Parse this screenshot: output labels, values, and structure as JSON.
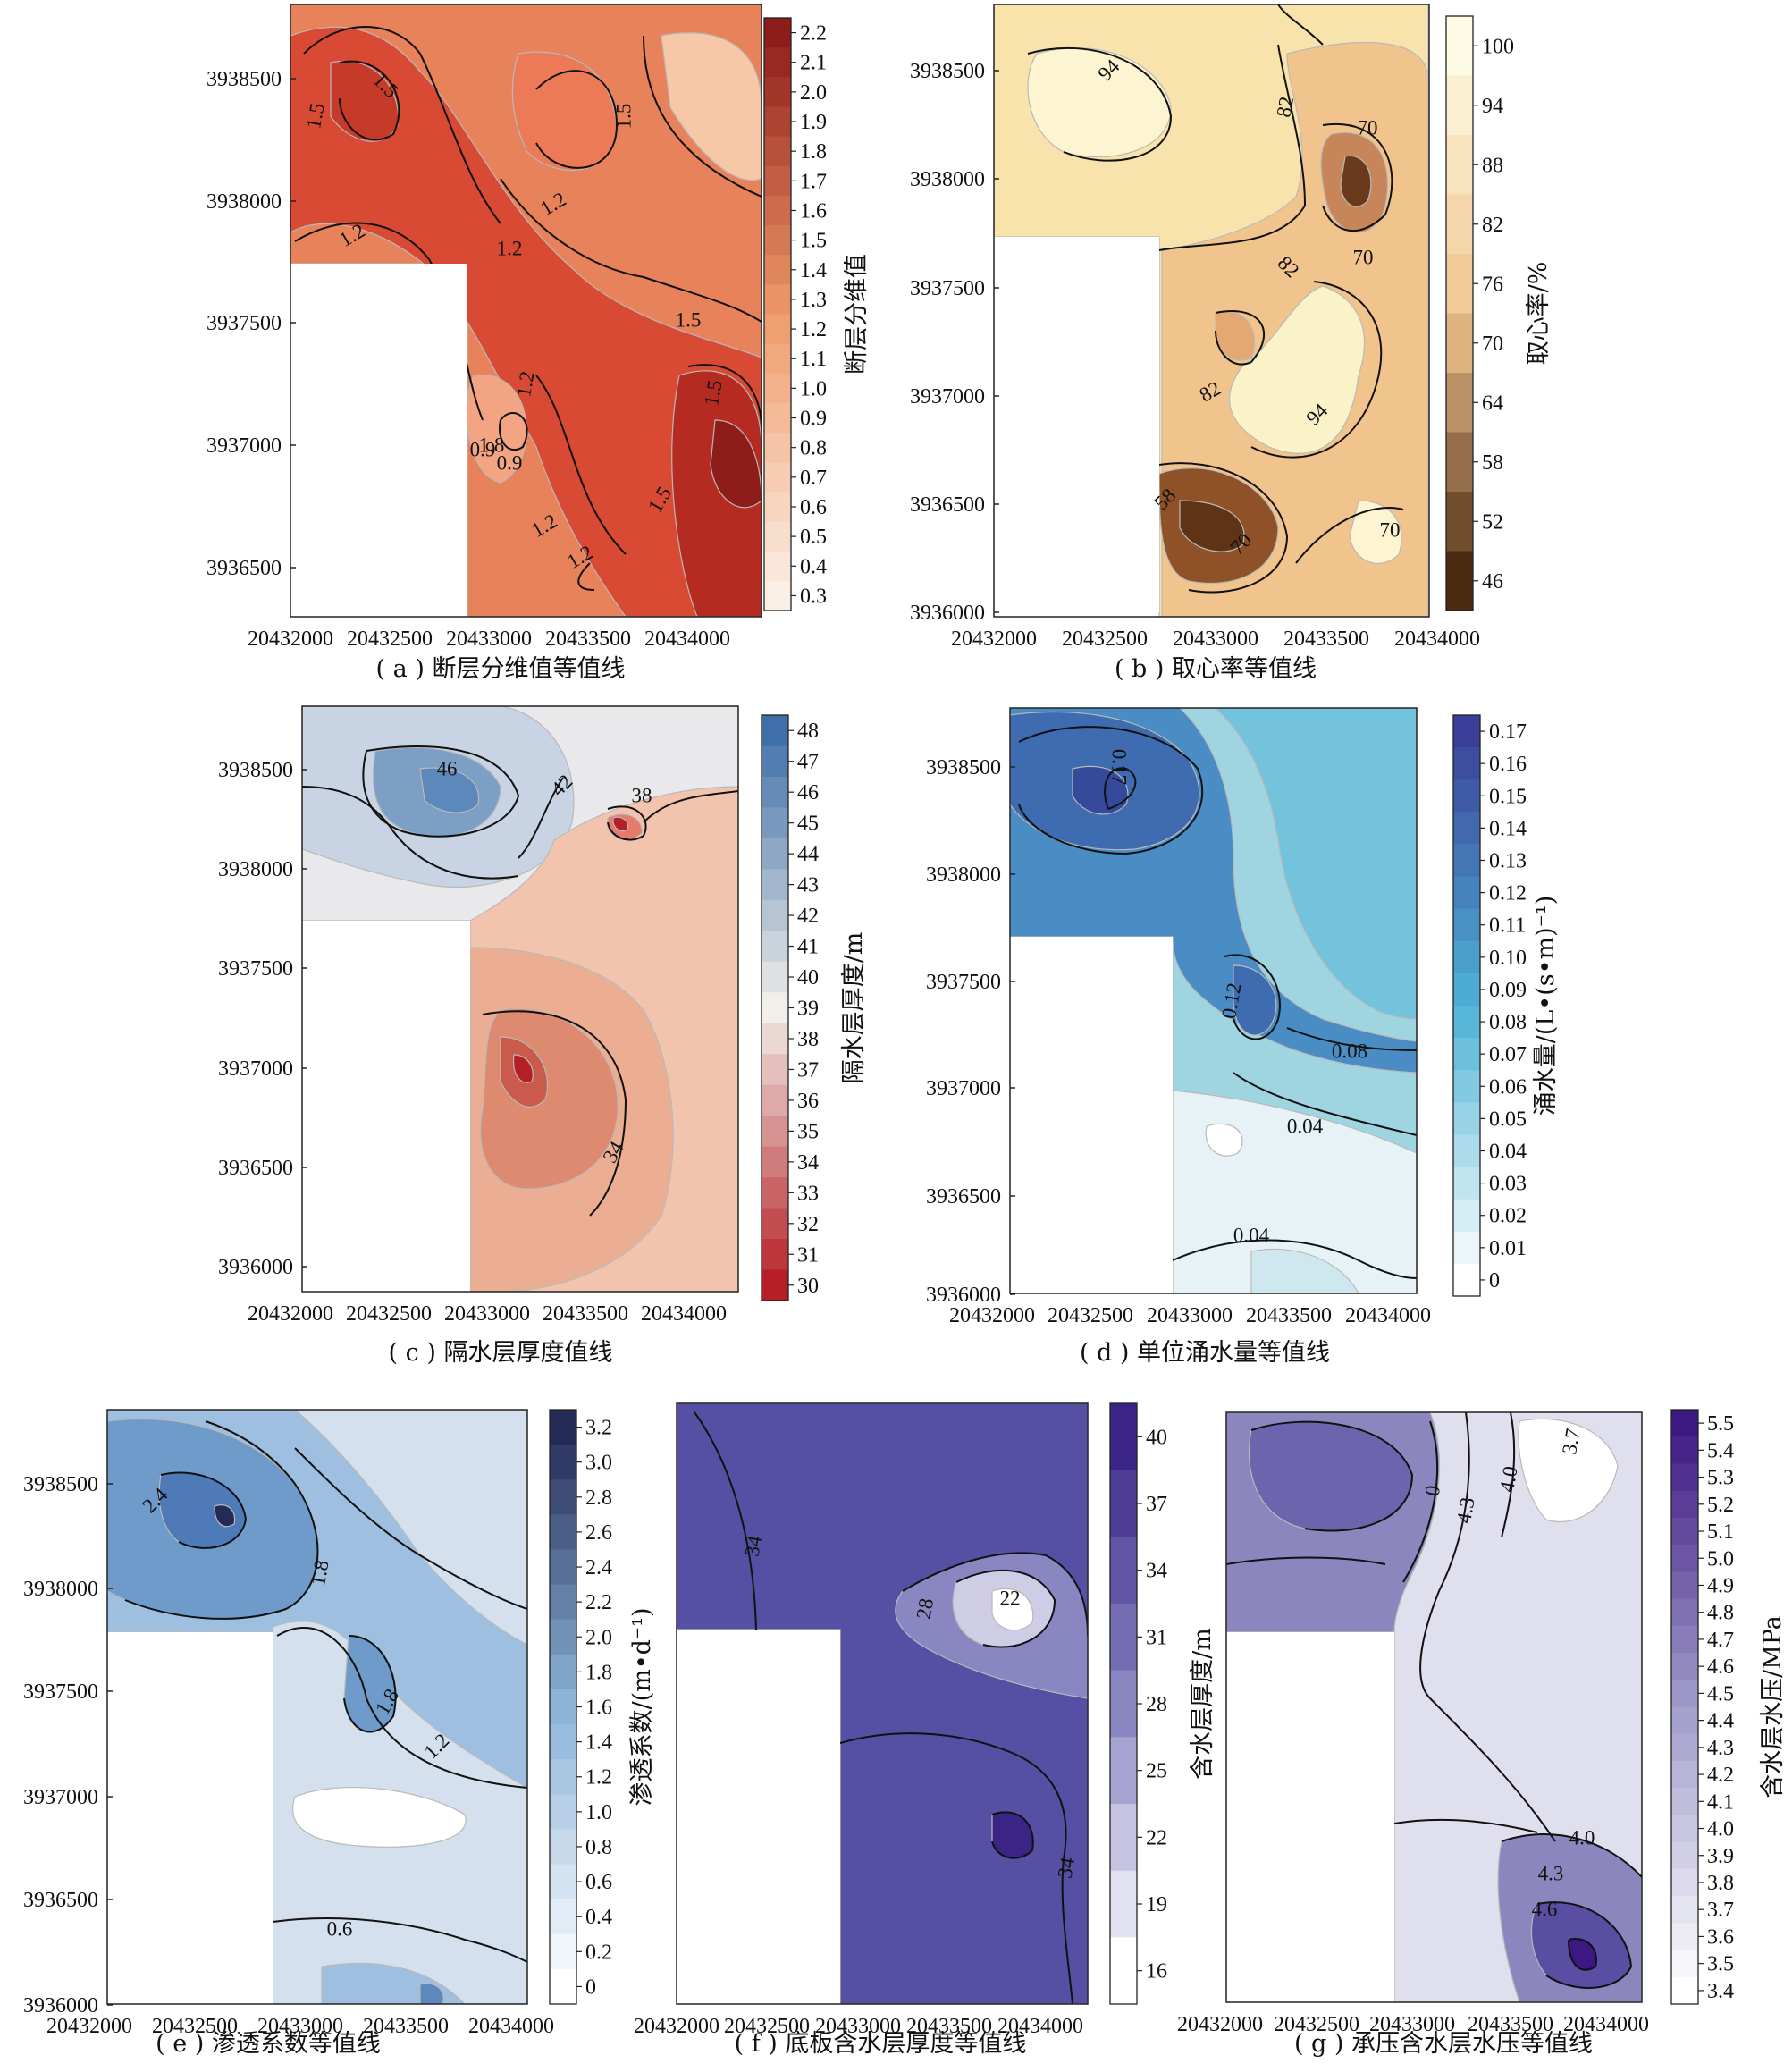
{
  "chart_data": [
    {
      "id": "a",
      "type": "contour",
      "caption": "( a )  断层分维值等值线",
      "x_ticks": [
        "20432000",
        "20432500",
        "20433000",
        "20433500",
        "20434000"
      ],
      "y_ticks": [
        "3936500",
        "3937000",
        "3937500",
        "3938000",
        "3938500"
      ],
      "colorbar_title": "断层分维值",
      "colorbar_ticks": [
        "2.2",
        "2.1",
        "2.0",
        "1.9",
        "1.8",
        "1.7",
        "1.6",
        "1.5",
        "1.4",
        "1.3",
        "1.2",
        "1.1",
        "1.0",
        "0.9",
        "0.8",
        "0.7",
        "0.6",
        "0.5",
        "0.4",
        "0.3"
      ],
      "colorbar_range": [
        0.3,
        2.3
      ],
      "contour_labels": [
        "1.5",
        "1.5",
        "0.9",
        "1.2",
        "1.2",
        "1.5",
        "1.2",
        "1.2",
        "1.5",
        "1.5",
        "1.8",
        "0.9",
        "1.2",
        "1.2",
        "1.5"
      ],
      "colors": {
        "low": "#fbf0e6",
        "mid": "#ef9a6a",
        "high": "#8e1c18"
      }
    },
    {
      "id": "b",
      "type": "contour",
      "caption": "( b )  取心率等值线",
      "x_ticks": [
        "20432000",
        "20432500",
        "20433000",
        "20433500",
        "20434000"
      ],
      "y_ticks": [
        "3936000",
        "3936500",
        "3937000",
        "3937500",
        "3938000",
        "3938500"
      ],
      "colorbar_title": "取心率/%",
      "colorbar_ticks": [
        "100",
        "94",
        "88",
        "82",
        "76",
        "70",
        "64",
        "58",
        "52",
        "46"
      ],
      "colorbar_range": [
        43,
        103
      ],
      "contour_labels": [
        "94",
        "82",
        "70",
        "82",
        "70",
        "82",
        "94",
        "58",
        "70",
        "70"
      ],
      "colors": {
        "low": "#4a2b12",
        "mid": "#f1c48d",
        "high": "#fdfbe3"
      }
    },
    {
      "id": "c",
      "type": "contour",
      "caption": "( c )  隔水层厚度值线",
      "x_ticks": [
        "20432000",
        "20432500",
        "20433000",
        "20433500",
        "20434000"
      ],
      "y_ticks": [
        "3936000",
        "3936500",
        "3937000",
        "3937500",
        "3938000",
        "3938500"
      ],
      "colorbar_title": "隔水层厚度/m",
      "colorbar_ticks": [
        "48",
        "47",
        "46",
        "45",
        "44",
        "43",
        "42",
        "41",
        "40",
        "39",
        "38",
        "37",
        "36",
        "35",
        "34",
        "33",
        "32",
        "31",
        "30"
      ],
      "colorbar_range": [
        29.5,
        48.5
      ],
      "contour_labels": [
        "46",
        "42",
        "38",
        "34"
      ],
      "colors": {
        "low": "#b51f25",
        "mid": "#f2eee9",
        "high": "#3e6fa9"
      }
    },
    {
      "id": "d",
      "type": "contour",
      "caption": "( d )  单位涌水量等值线",
      "x_ticks": [
        "20432000",
        "20432500",
        "20433000",
        "20433500",
        "20434000"
      ],
      "y_ticks": [
        "3936000",
        "3936500",
        "3937000",
        "3937500",
        "3938000",
        "3938500"
      ],
      "colorbar_title": "涌水量/(L•(s•m)⁻¹)",
      "colorbar_ticks": [
        "0.17",
        "0.16",
        "0.15",
        "0.14",
        "0.13",
        "0.12",
        "0.11",
        "0.10",
        "0.09",
        "0.08",
        "0.07",
        "0.06",
        "0.05",
        "0.04",
        "0.03",
        "0.02",
        "0.01",
        "0"
      ],
      "colorbar_range": [
        0,
        0.18
      ],
      "contour_labels": [
        "0.17",
        "0.12",
        "0.08",
        "0.04",
        "0.04"
      ],
      "colors": {
        "low": "#ffffff",
        "mid": "#4eb3d6",
        "high": "#3b3f99"
      }
    },
    {
      "id": "e",
      "type": "contour",
      "caption": "( e )  渗透系数等值线",
      "x_ticks": [
        "20432000",
        "20432500",
        "20433000",
        "20433500",
        "20434000"
      ],
      "y_ticks": [
        "3936000",
        "3936500",
        "3937000",
        "3937500",
        "3938000",
        "3938500"
      ],
      "colorbar_title": "渗透系数/(m•d⁻¹)",
      "colorbar_ticks": [
        "3.2",
        "3.0",
        "2.8",
        "2.6",
        "2.4",
        "2.2",
        "2.0",
        "1.8",
        "1.6",
        "1.4",
        "1.2",
        "1.0",
        "0.8",
        "0.6",
        "0.4",
        "0.2",
        "0"
      ],
      "colorbar_range": [
        0,
        3.3
      ],
      "contour_labels": [
        "2.4",
        "1.8",
        "1.8",
        "1.2",
        "0.6"
      ],
      "colors": {
        "low": "#ffffff",
        "mid": "#8cb4d9",
        "high": "#222a55"
      }
    },
    {
      "id": "f",
      "type": "contour",
      "caption": "( f )  底板含水层厚度等值线",
      "x_ticks": [
        "20432000",
        "20432500",
        "20433000",
        "20433500",
        "20434000"
      ],
      "y_ticks": [],
      "colorbar_title": "含水层厚度/m",
      "colorbar_ticks": [
        "40",
        "37",
        "34",
        "31",
        "28",
        "25",
        "22",
        "19",
        "16"
      ],
      "colorbar_range": [
        15,
        42
      ],
      "contour_labels": [
        "34",
        "28",
        "22",
        "34"
      ],
      "colors": {
        "low": "#ffffff",
        "mid": "#8a86c2",
        "high": "#3a2486"
      }
    },
    {
      "id": "g",
      "type": "contour",
      "caption": "( g )  承压含水层水压等值线",
      "x_ticks": [
        "20432000",
        "20432500",
        "20433000",
        "20433500",
        "20434000"
      ],
      "y_ticks": [],
      "colorbar_title": "含水层水压/MPa",
      "colorbar_ticks": [
        "5.5",
        "5.4",
        "5.3",
        "5.2",
        "5.1",
        "5.0",
        "4.9",
        "4.8",
        "4.7",
        "4.6",
        "4.5",
        "4.4",
        "4.3",
        "4.2",
        "4.1",
        "4.0",
        "3.9",
        "3.8",
        "3.7",
        "3.6",
        "3.5",
        "3.4"
      ],
      "colorbar_range": [
        3.4,
        5.6
      ],
      "contour_labels": [
        "0",
        "4.3",
        "4.0",
        "3.7",
        "4.0",
        "4.3",
        "4.6"
      ],
      "colors": {
        "low": "#ffffff",
        "mid": "#a09cca",
        "high": "#3d1782"
      }
    }
  ]
}
